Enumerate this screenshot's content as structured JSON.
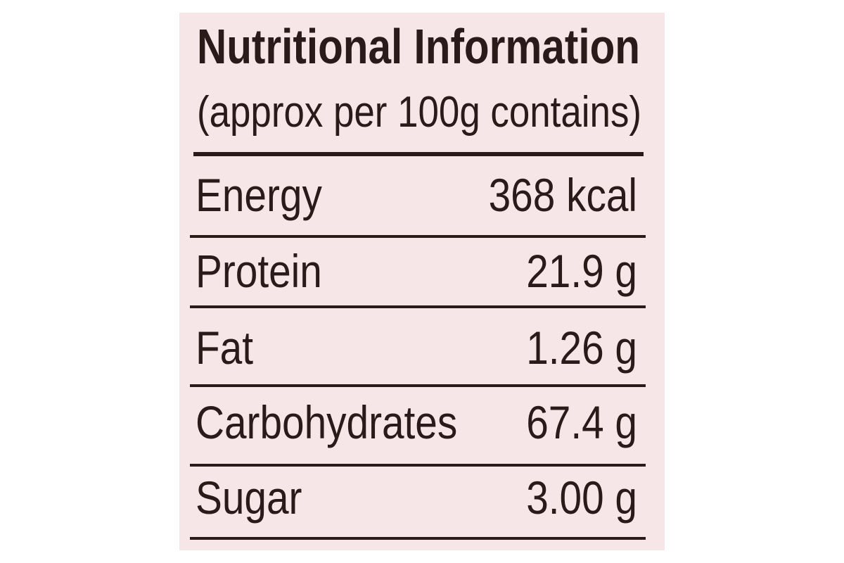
{
  "header": {
    "title": "Nutritional Information",
    "subtitle": "(approx per 100g contains)"
  },
  "table": {
    "rows": [
      [
        "Energy",
        "368 kcal"
      ],
      [
        "Protein",
        "21.9 g"
      ],
      [
        "Fat",
        "1.26 g"
      ],
      [
        "Carbohydrates",
        "67.4 g"
      ],
      [
        "Sugar",
        "3.00 g"
      ]
    ]
  }
}
